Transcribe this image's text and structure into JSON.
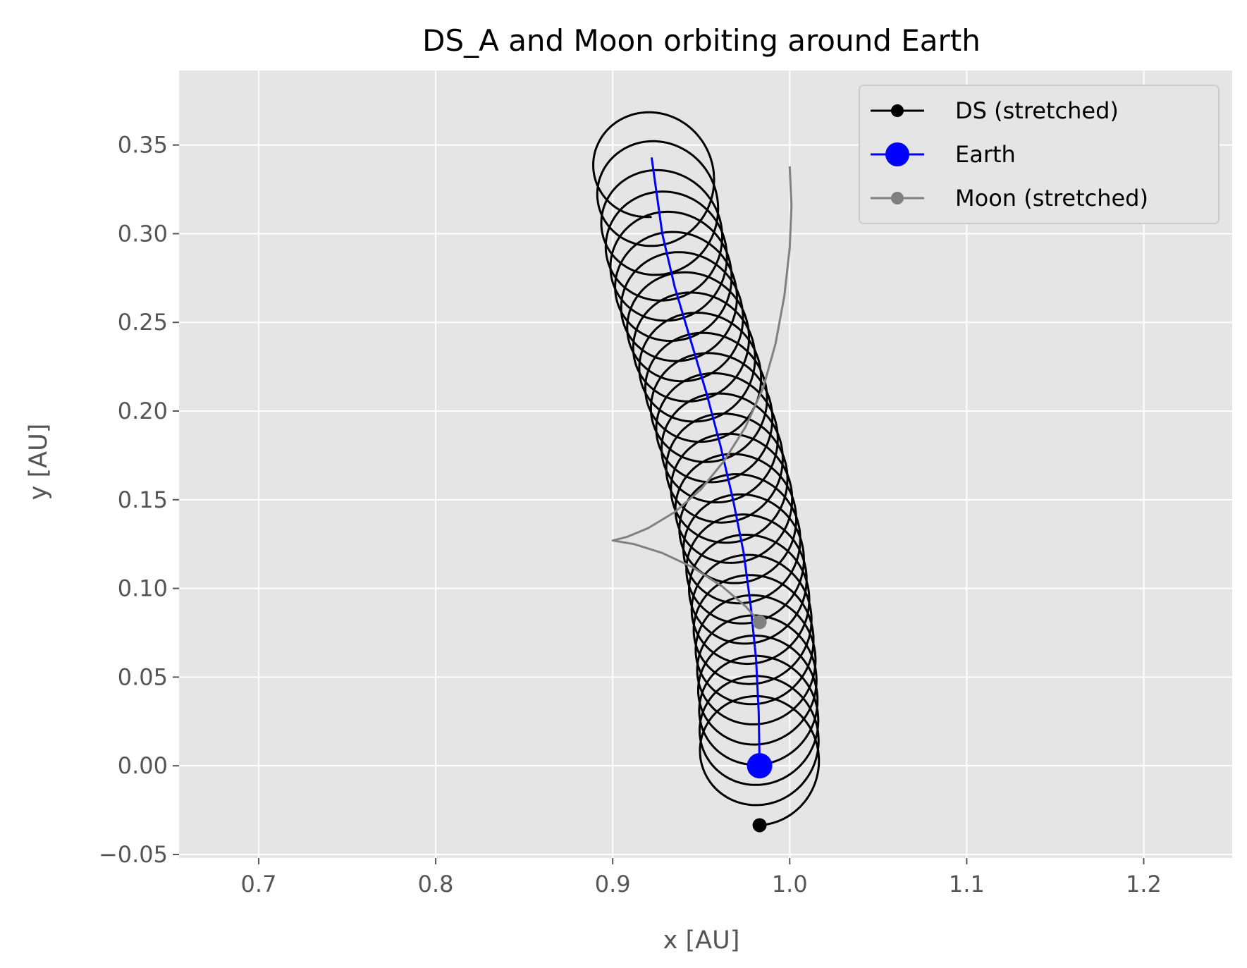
{
  "chart_data": {
    "type": "line",
    "title": "DS_A and Moon orbiting around Earth",
    "xlabel": "x [AU]",
    "ylabel": "y [AU]",
    "xlim": [
      0.655,
      1.25
    ],
    "ylim": [
      -0.052,
      0.392
    ],
    "xticks": [
      0.7,
      0.8,
      0.9,
      1.0,
      1.1,
      1.2
    ],
    "xtick_labels": [
      "0.7",
      "0.8",
      "0.9",
      "1.0",
      "1.1",
      "1.2"
    ],
    "yticks": [
      -0.05,
      0.0,
      0.05,
      0.1,
      0.15,
      0.2,
      0.25,
      0.3,
      0.35
    ],
    "ytick_labels": [
      "−0.05",
      "0.00",
      "0.05",
      "0.10",
      "0.15",
      "0.20",
      "0.25",
      "0.30",
      "0.35"
    ],
    "grid": true,
    "style": "ggplot",
    "legend_position": "top-right",
    "series": [
      {
        "name": "DS (stretched)",
        "color": "#000000",
        "kind": "epicycle-loops",
        "loop_radius": 0.0335,
        "loop_count": 29,
        "marker_end": [
          0.983,
          -0.0335
        ]
      },
      {
        "name": "Earth",
        "color": "#0000ff",
        "x": [
          0.983,
          0.9825,
          0.981,
          0.978,
          0.974,
          0.968,
          0.961,
          0.953,
          0.944,
          0.935,
          0.928,
          0.922
        ],
        "y": [
          0.0,
          0.03,
          0.06,
          0.09,
          0.12,
          0.15,
          0.18,
          0.21,
          0.24,
          0.27,
          0.3,
          0.343
        ],
        "marker_end": [
          0.983,
          0.0
        ]
      },
      {
        "name": "Moon (stretched)",
        "color": "#808080",
        "x": [
          0.983,
          0.975,
          0.962,
          0.945,
          0.928,
          0.912,
          0.9,
          0.908,
          0.92,
          0.935,
          0.95,
          0.963,
          0.975,
          0.985,
          0.992,
          0.997,
          1.0,
          1.001,
          1.0
        ],
        "y": [
          0.081,
          0.09,
          0.101,
          0.112,
          0.12,
          0.125,
          0.127,
          0.129,
          0.134,
          0.143,
          0.156,
          0.172,
          0.191,
          0.213,
          0.238,
          0.265,
          0.292,
          0.316,
          0.338
        ],
        "marker_end": [
          0.983,
          0.081
        ]
      }
    ]
  }
}
